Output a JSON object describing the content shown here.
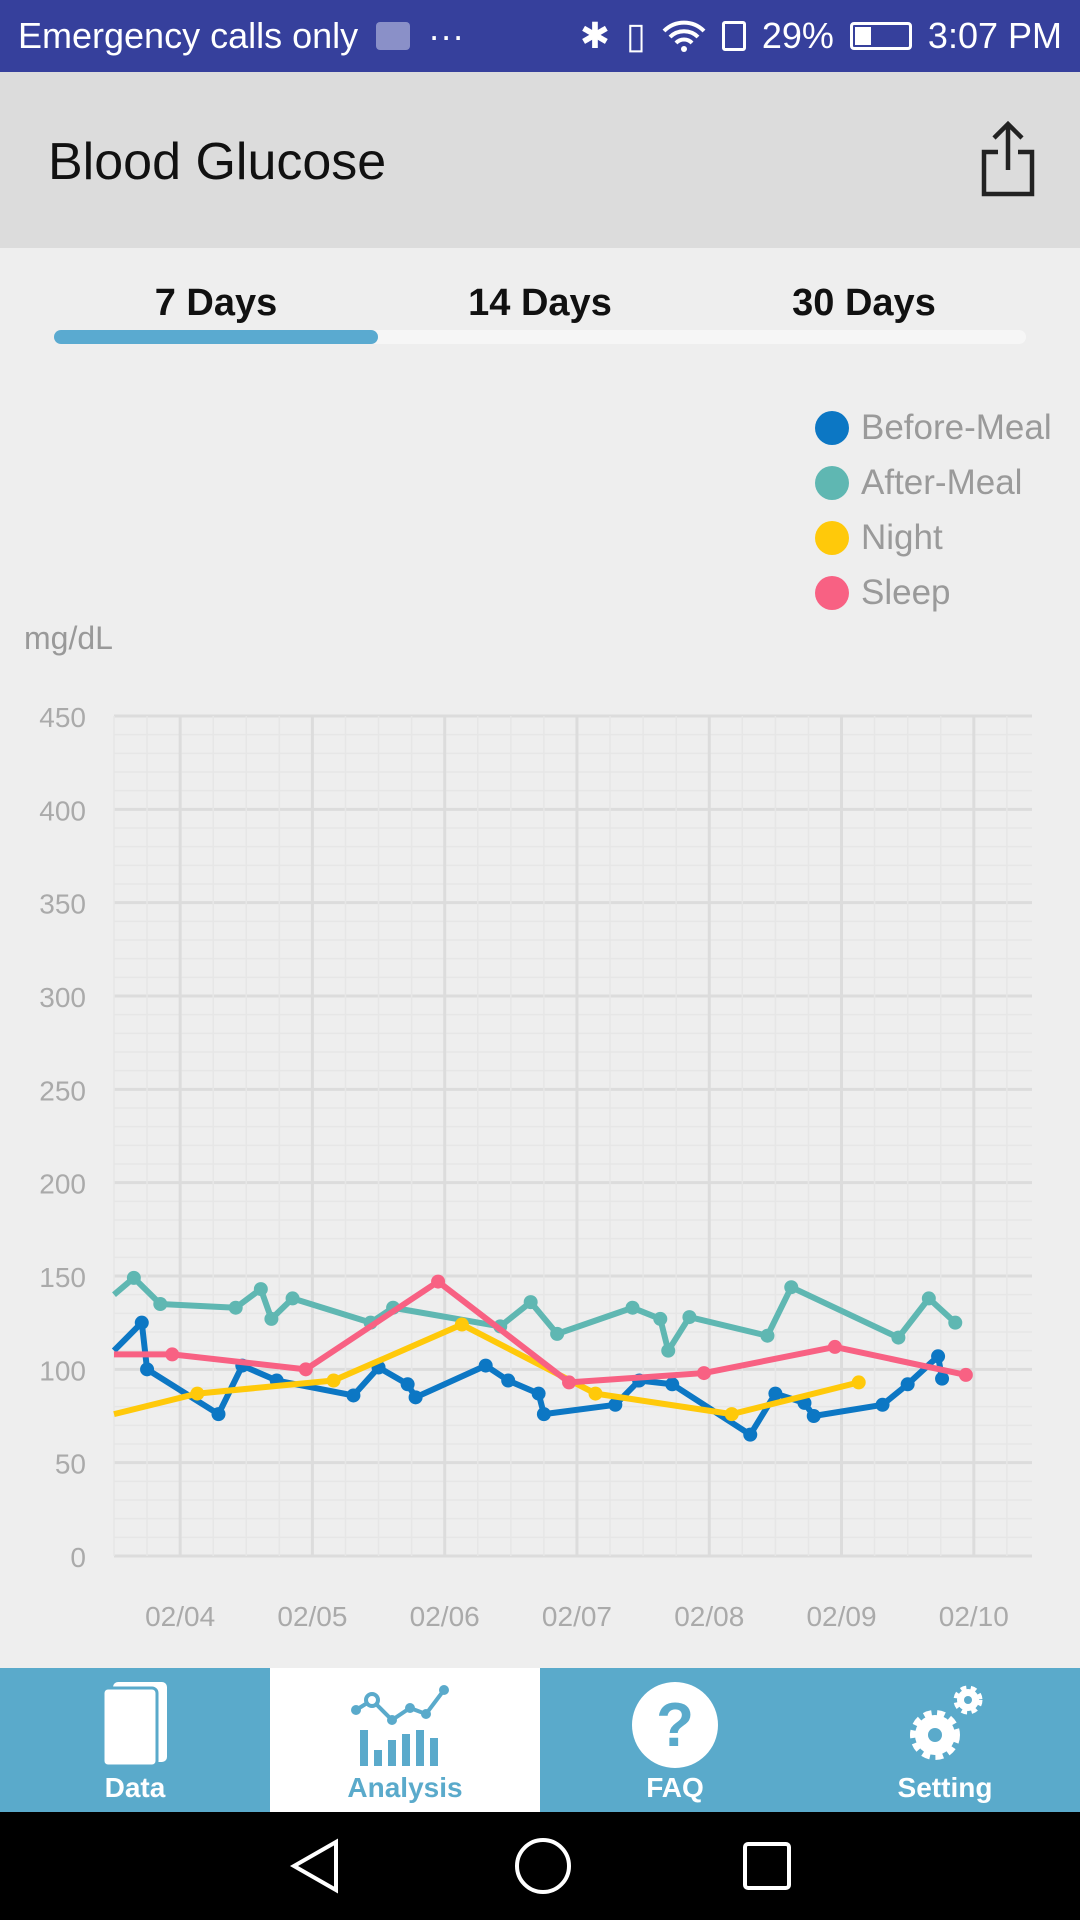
{
  "status_bar": {
    "carrier": "Emergency calls only",
    "dots": "···",
    "battery": "29%",
    "battery_level": 0.29,
    "time": "3:07 PM",
    "icons": [
      "health-icon",
      "bluetooth-icon",
      "vibrate-icon",
      "wifi-icon",
      "sim-icon",
      "battery-icon"
    ]
  },
  "header": {
    "title": "Blood Glucose",
    "share_icon": "share-icon"
  },
  "tabs": {
    "items": [
      {
        "label": "7 Days"
      },
      {
        "label": "14 Days"
      },
      {
        "label": "30 Days"
      }
    ],
    "selected": 0
  },
  "legend": [
    {
      "label": "Before-Meal",
      "color": "#0c77c4"
    },
    {
      "label": "After-Meal",
      "color": "#5fb7b2"
    },
    {
      "label": "Night",
      "color": "#ffc90a"
    },
    {
      "label": "Sleep",
      "color": "#f86183"
    }
  ],
  "chart_data": {
    "type": "line",
    "ylabel": "mg/dL",
    "ylim": [
      0,
      450
    ],
    "yticks": [
      0,
      50,
      100,
      150,
      200,
      250,
      300,
      350,
      400,
      450
    ],
    "xlim": [
      3.5,
      10.44
    ],
    "xticks": [
      {
        "x": 4,
        "label": "02/04"
      },
      {
        "x": 5,
        "label": "02/05"
      },
      {
        "x": 6,
        "label": "02/06"
      },
      {
        "x": 7,
        "label": "02/07"
      },
      {
        "x": 8,
        "label": "02/08"
      },
      {
        "x": 9,
        "label": "02/09"
      },
      {
        "x": 10,
        "label": "02/10"
      }
    ],
    "grid": true,
    "legend_position": "top-right",
    "series": [
      {
        "name": "Before-Meal",
        "color": "#0c77c4",
        "x": [
          3.5,
          3.71,
          3.75,
          4.29,
          4.47,
          4.73,
          5.31,
          5.5,
          5.72,
          5.78,
          6.31,
          6.48,
          6.71,
          6.75,
          7.29,
          7.47,
          7.72,
          8.31,
          8.5,
          8.72,
          8.79,
          9.31,
          9.5,
          9.73,
          9.76
        ],
        "y": [
          110,
          125,
          100,
          76,
          102,
          94,
          86,
          101,
          92,
          85,
          102,
          94,
          87,
          76,
          81,
          94,
          92,
          65,
          87,
          82,
          75,
          81,
          92,
          107,
          95
        ]
      },
      {
        "name": "After-Meal",
        "color": "#5fb7b2",
        "x": [
          3.5,
          3.65,
          3.85,
          4.42,
          4.61,
          4.69,
          4.85,
          5.44,
          5.61,
          6.42,
          6.65,
          6.85,
          7.42,
          7.63,
          7.69,
          7.85,
          8.44,
          8.62,
          9.43,
          9.66,
          9.86
        ],
        "y": [
          140,
          149,
          135,
          133,
          143,
          127,
          138,
          125,
          133,
          123,
          136,
          119,
          133,
          127,
          110,
          128,
          118,
          144,
          117,
          138,
          125
        ]
      },
      {
        "name": "Night",
        "color": "#ffc90a",
        "x": [
          3.5,
          4.13,
          5.16,
          6.13,
          7.14,
          8.17,
          9.13
        ],
        "y": [
          76,
          87,
          94,
          124,
          87,
          76,
          93
        ]
      },
      {
        "name": "Sleep",
        "color": "#f86183",
        "x": [
          3.5,
          3.94,
          4.95,
          5.95,
          6.94,
          7.96,
          8.95,
          9.94
        ],
        "y": [
          108,
          108,
          100,
          147,
          93,
          98,
          112,
          97
        ]
      }
    ]
  },
  "bottom_nav": [
    {
      "label": "Data",
      "icon": "document-icon"
    },
    {
      "label": "Analysis",
      "icon": "analysis-icon"
    },
    {
      "label": "FAQ",
      "icon": "question-icon"
    },
    {
      "label": "Setting",
      "icon": "gear-icon"
    }
  ],
  "bottom_nav_selected": 1
}
